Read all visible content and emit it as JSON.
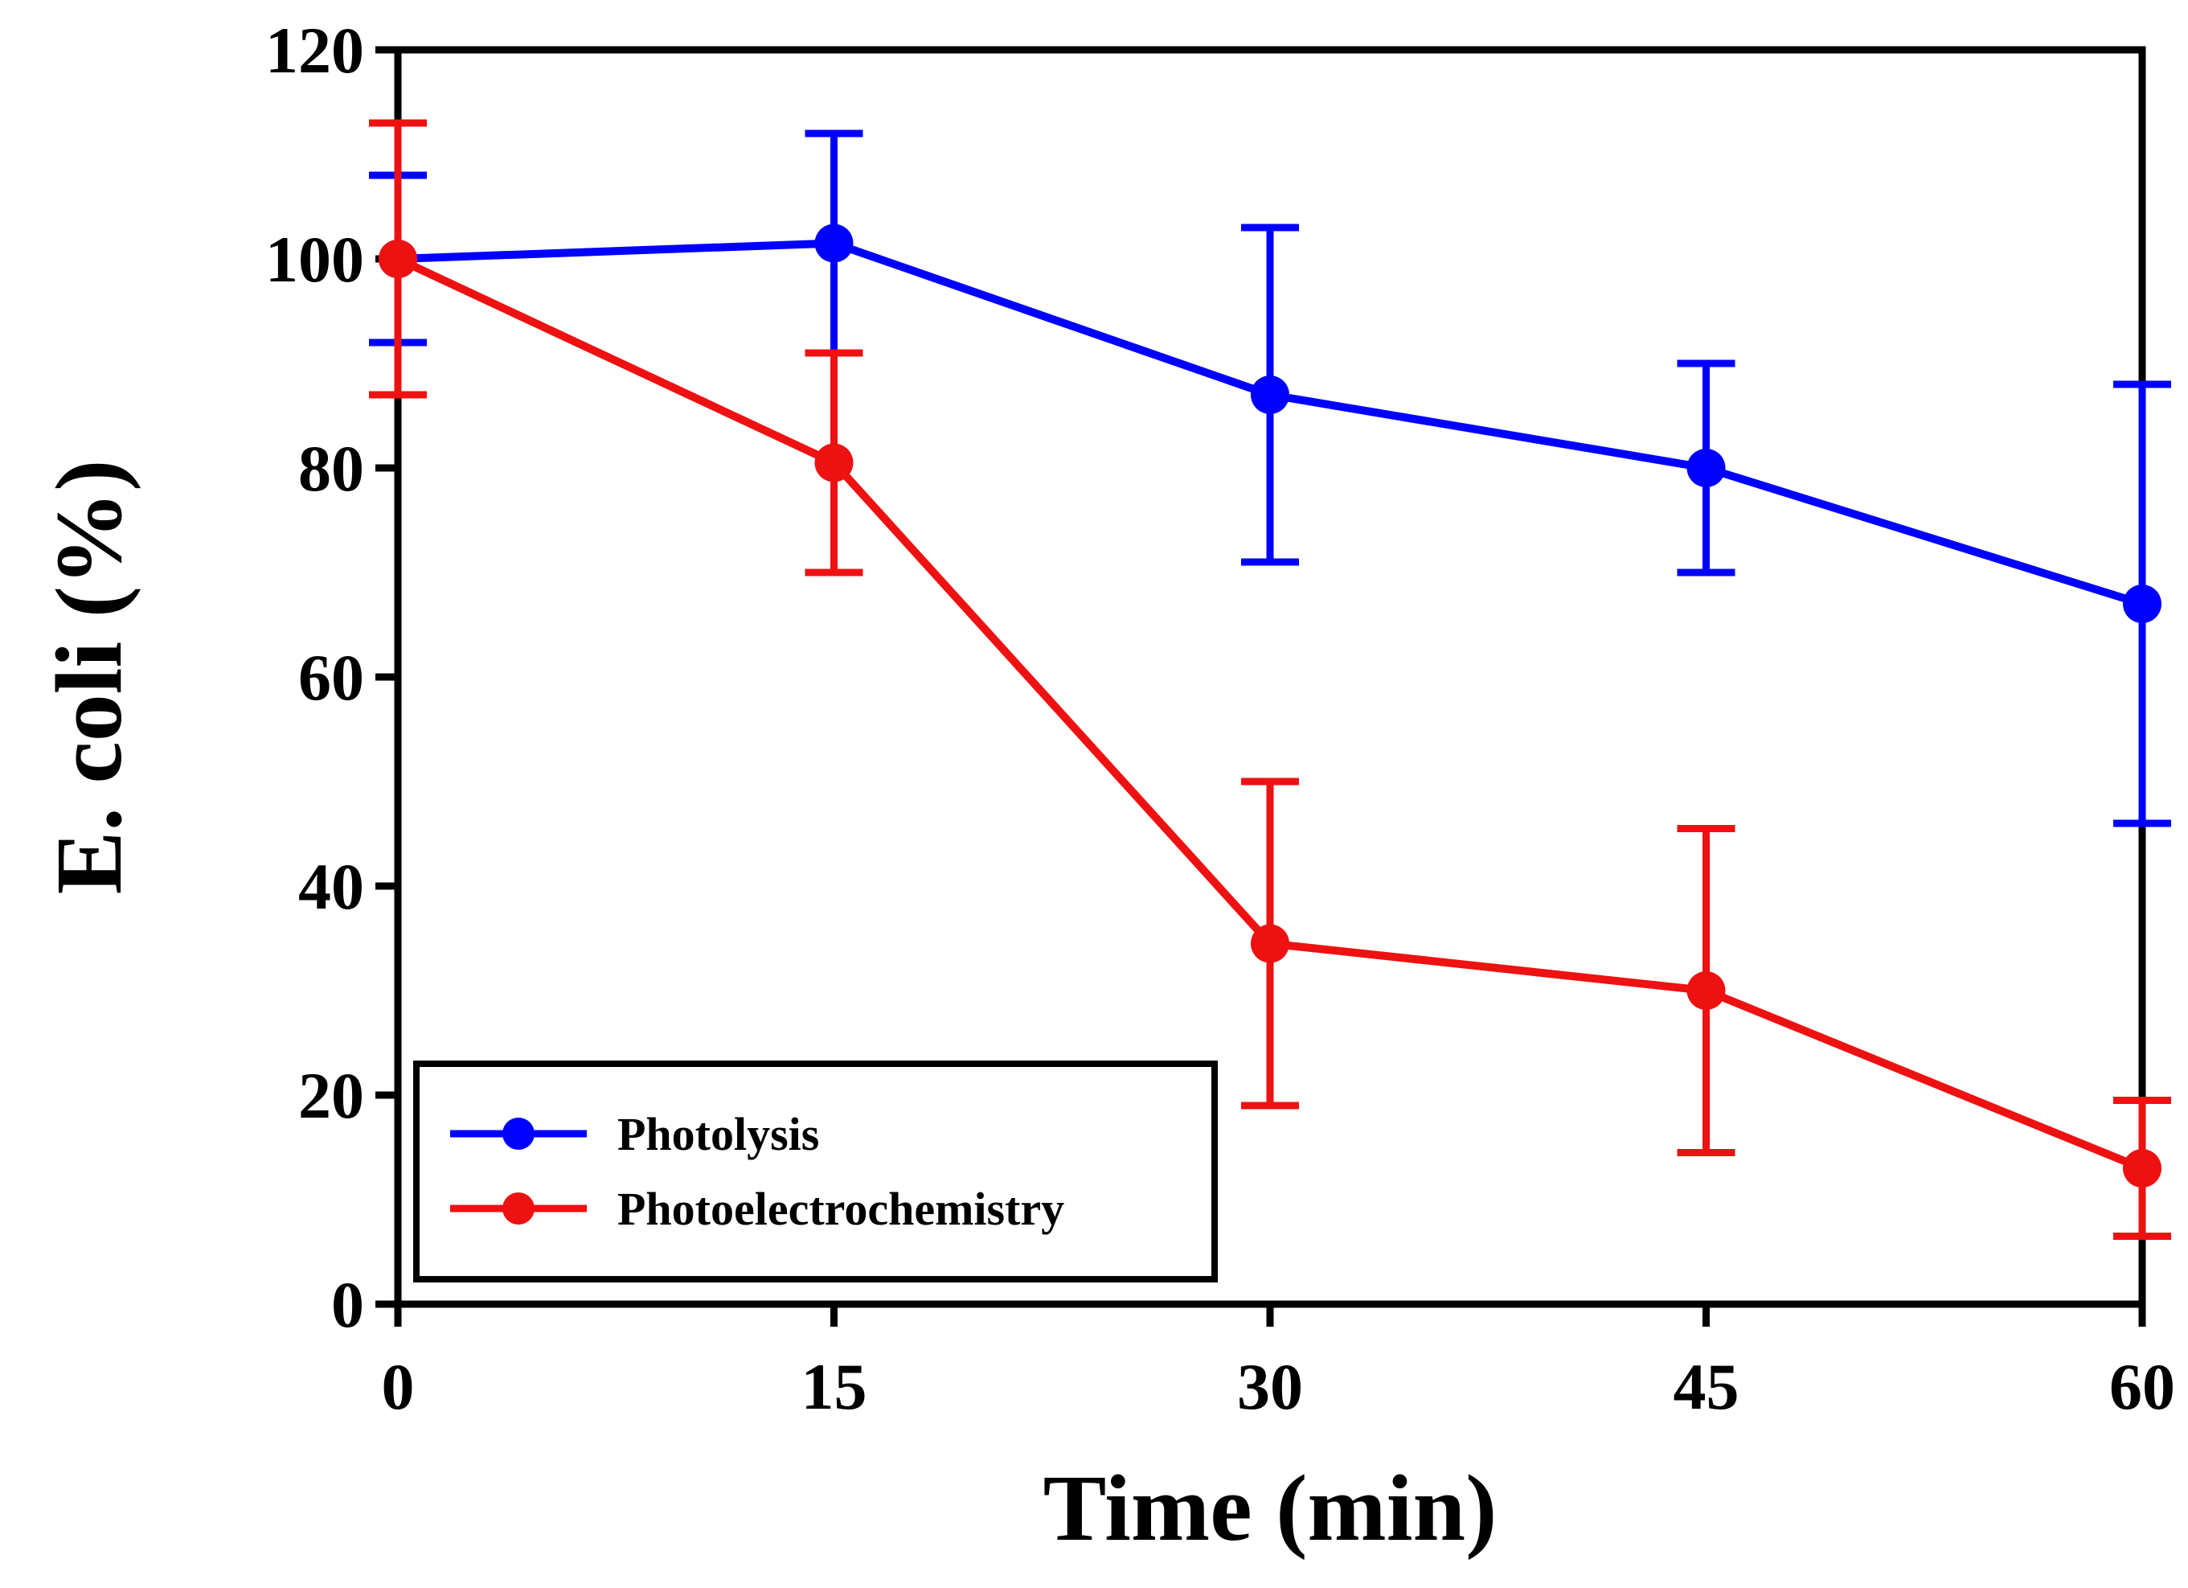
{
  "chart_data": {
    "type": "line",
    "title": "",
    "xlabel": "Time (min)",
    "ylabel": "E. coli (%)",
    "xlim": [
      0,
      60
    ],
    "ylim": [
      0,
      120
    ],
    "x_ticks": [
      0,
      15,
      30,
      45,
      60
    ],
    "y_ticks": [
      0,
      20,
      40,
      60,
      80,
      100,
      120
    ],
    "grid": false,
    "legend_position": "bottom-left",
    "series": [
      {
        "name": "Photolysis",
        "color": "#0000ff",
        "x": [
          0,
          15,
          30,
          45,
          60
        ],
        "values": [
          100,
          101.5,
          87,
          80,
          67
        ],
        "error": [
          8,
          10.5,
          16,
          10,
          21
        ]
      },
      {
        "name": "Photoelectrochemistry",
        "color": "#ee1111",
        "x": [
          0,
          15,
          30,
          45,
          60
        ],
        "values": [
          100,
          80.5,
          34.5,
          30,
          13
        ],
        "error": [
          13,
          10.5,
          15.5,
          15.5,
          6.5
        ]
      }
    ]
  }
}
